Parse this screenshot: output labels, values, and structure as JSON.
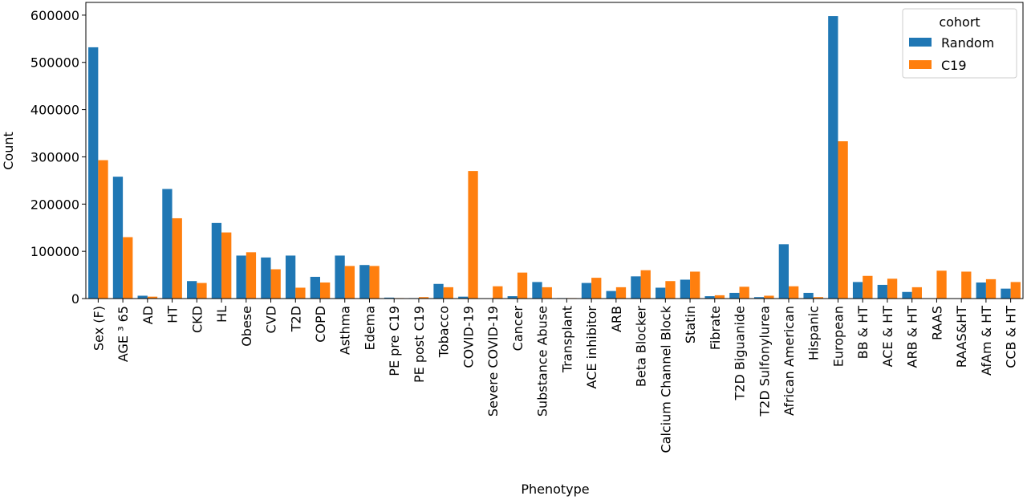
{
  "chart_data": {
    "type": "bar",
    "x_label": "Phenotype",
    "y_label": "Count",
    "categories": [
      "Sex (F)",
      "AGE ³ 65",
      "AD",
      "HT",
      "CKD",
      "HL",
      "Obese",
      "CVD",
      "T2D",
      "COPD",
      "Asthma",
      "Edema",
      "PE pre C19",
      "PE post C19",
      "Tobacco",
      "COVID-19",
      "Severe COVID-19",
      "Cancer",
      "Substance Abuse",
      "Transplant",
      "ACE inhibitor",
      "ARB",
      "Beta Blocker",
      "Calcium Channel Block",
      "Statin",
      "Fibrate",
      "T2D Biguanide",
      "T2D Sulfonylurea",
      "African American",
      "Hispanic",
      "European",
      "BB & HT",
      "ACE & HT",
      "ARB & HT",
      "RAAS",
      "RAAS&HT",
      "AfAm & HT",
      "CCB & HT"
    ],
    "series": [
      {
        "name": "Random",
        "color": "#1f77b4",
        "values": [
          532000,
          258000,
          6000,
          232000,
          37000,
          160000,
          91000,
          87000,
          91000,
          46000,
          91000,
          71000,
          2000,
          1000,
          31000,
          4000,
          0,
          5000,
          35000,
          1000,
          33000,
          16000,
          47000,
          23000,
          40000,
          5000,
          12000,
          3000,
          115000,
          12000,
          598000,
          35000,
          29000,
          14000,
          0,
          0,
          34000,
          21000
        ]
      },
      {
        "name": "C19",
        "color": "#ff7f0e",
        "values": [
          293000,
          130000,
          4000,
          170000,
          33000,
          140000,
          98000,
          62000,
          23000,
          34000,
          69000,
          69000,
          1000,
          3000,
          24000,
          270000,
          26000,
          55000,
          24000,
          1000,
          44000,
          24000,
          60000,
          37000,
          57000,
          7000,
          25000,
          6000,
          26000,
          3000,
          333000,
          48000,
          42000,
          24000,
          59000,
          57000,
          41000,
          35000
        ]
      }
    ],
    "legend_title": "cohort",
    "legend": "upper right",
    "ylim": [
      0,
      627000
    ],
    "yticks": [
      0,
      100000,
      200000,
      300000,
      400000,
      500000,
      600000
    ]
  }
}
